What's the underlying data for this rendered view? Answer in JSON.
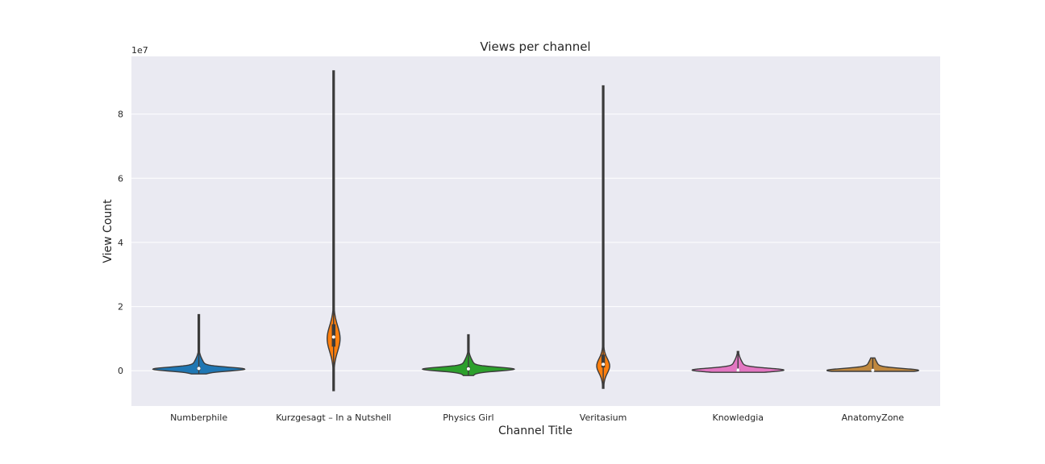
{
  "chart_data": {
    "type": "violin",
    "title": "Views per channel",
    "xlabel": "Channel Title",
    "ylabel": "View Count",
    "y_offset_label": "1e7",
    "ylim": [
      -1.1,
      9.8
    ],
    "yticks": [
      0,
      2,
      4,
      6,
      8
    ],
    "grid": true,
    "legend": "none",
    "categories": [
      "Numberphile",
      "Kurzgesagt – In a Nutshell",
      "Physics Girl",
      "Veritasium",
      "Knowledgia",
      "AnatomyZone"
    ],
    "series": [
      {
        "category": "Numberphile",
        "color": "#1f77b4",
        "min": -0.1,
        "max": 1.75,
        "q1": 0.02,
        "median": 0.07,
        "q3": 0.12,
        "mode": 0.05
      },
      {
        "category": "Kurzgesagt – In a Nutshell",
        "color": "#ff7f0e",
        "min": -0.62,
        "max": 9.35,
        "q1": 0.75,
        "median": 1.05,
        "q3": 1.45,
        "mode": 1.0
      },
      {
        "category": "Physics Girl",
        "color": "#2ca02c",
        "min": -0.15,
        "max": 1.12,
        "q1": 0.02,
        "median": 0.06,
        "q3": 0.12,
        "mode": 0.05
      },
      {
        "category": "Veritasium",
        "color": "#ff7f0e",
        "min": -0.55,
        "max": 8.88,
        "q1": 0.1,
        "median": 0.2,
        "q3": 0.5,
        "mode": 0.15
      },
      {
        "category": "Knowledgia",
        "color": "#e377c2",
        "min": -0.05,
        "max": 0.6,
        "q1": 0.0,
        "median": 0.02,
        "q3": 0.05,
        "mode": 0.02
      },
      {
        "category": "AnatomyZone",
        "color": "#c0883e",
        "min": -0.02,
        "max": 0.4,
        "q1": 0.0,
        "median": 0.01,
        "q3": 0.03,
        "mode": 0.01
      }
    ]
  }
}
